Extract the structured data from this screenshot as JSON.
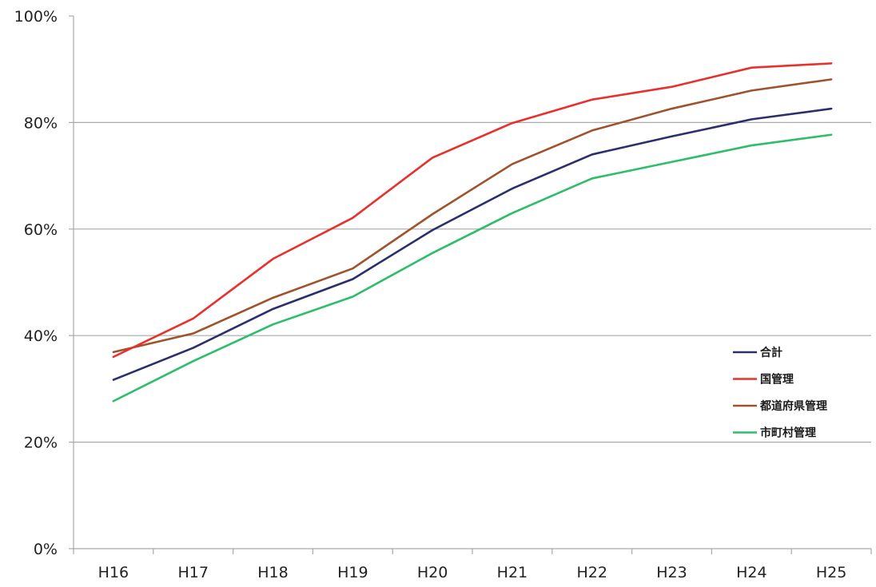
{
  "chart_data": {
    "type": "line",
    "title": "",
    "xlabel": "",
    "ylabel": "",
    "categories": [
      "H16",
      "H17",
      "H18",
      "H19",
      "H20",
      "H21",
      "H22",
      "H23",
      "H24",
      "H25"
    ],
    "ylim": [
      0,
      100
    ],
    "yticks": [
      0,
      20,
      40,
      60,
      80,
      100
    ],
    "ytick_labels": [
      "0%",
      "20%",
      "40%",
      "60%",
      "80%",
      "100%"
    ],
    "grid": true,
    "legend_position": "right",
    "series": [
      {
        "name": "合計",
        "color": "#2b2f6b",
        "values": [
          31.7,
          37.7,
          45.0,
          50.6,
          59.8,
          67.6,
          74.0,
          77.4,
          80.6,
          82.6
        ]
      },
      {
        "name": "国管理",
        "color": "#e8302c",
        "values": [
          36.0,
          43.2,
          54.4,
          62.1,
          73.4,
          79.9,
          84.3,
          86.7,
          90.3,
          91.1
        ]
      },
      {
        "name": "都道府県管理",
        "color": "#a0522d",
        "values": [
          36.9,
          40.4,
          47.1,
          52.6,
          62.8,
          72.2,
          78.5,
          82.6,
          86.0,
          88.1
        ]
      },
      {
        "name": "市町村管理",
        "color": "#2ebd68",
        "values": [
          27.7,
          35.2,
          42.1,
          47.3,
          55.5,
          63.0,
          69.5,
          72.6,
          75.7,
          77.7
        ]
      }
    ]
  }
}
